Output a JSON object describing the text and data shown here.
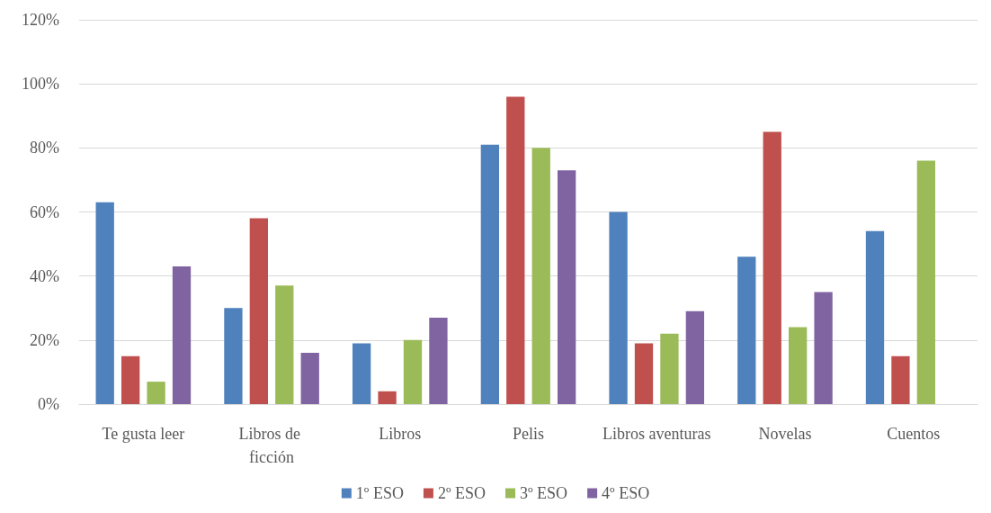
{
  "chart_data": {
    "type": "bar",
    "categories": [
      "Te gusta leer",
      "Libros de ficción",
      "Libros",
      "Pelis",
      "Libros aventuras",
      "Novelas",
      "Cuentos"
    ],
    "series": [
      {
        "name": "1º ESO",
        "color": "#4f81bd",
        "values": [
          63,
          30,
          19,
          81,
          60,
          46,
          54
        ]
      },
      {
        "name": "2º ESO",
        "color": "#c0504d",
        "values": [
          15,
          58,
          4,
          96,
          19,
          85,
          15
        ]
      },
      {
        "name": "3º ESO",
        "color": "#9bbb59",
        "values": [
          7,
          37,
          20,
          80,
          22,
          24,
          76
        ]
      },
      {
        "name": "4º ESO",
        "color": "#8064a2",
        "values": [
          43,
          16,
          27,
          73,
          29,
          35,
          null
        ]
      }
    ],
    "ylim": [
      0,
      120
    ],
    "yticks": [
      {
        "value": 0,
        "label": "0%"
      },
      {
        "value": 20,
        "label": "20%"
      },
      {
        "value": 40,
        "label": "40%"
      },
      {
        "value": 60,
        "label": "60%"
      },
      {
        "value": 80,
        "label": "80%"
      },
      {
        "value": 100,
        "label": "100%"
      },
      {
        "value": 120,
        "label": "120%"
      }
    ],
    "grid": "y",
    "legend": "bottom"
  }
}
